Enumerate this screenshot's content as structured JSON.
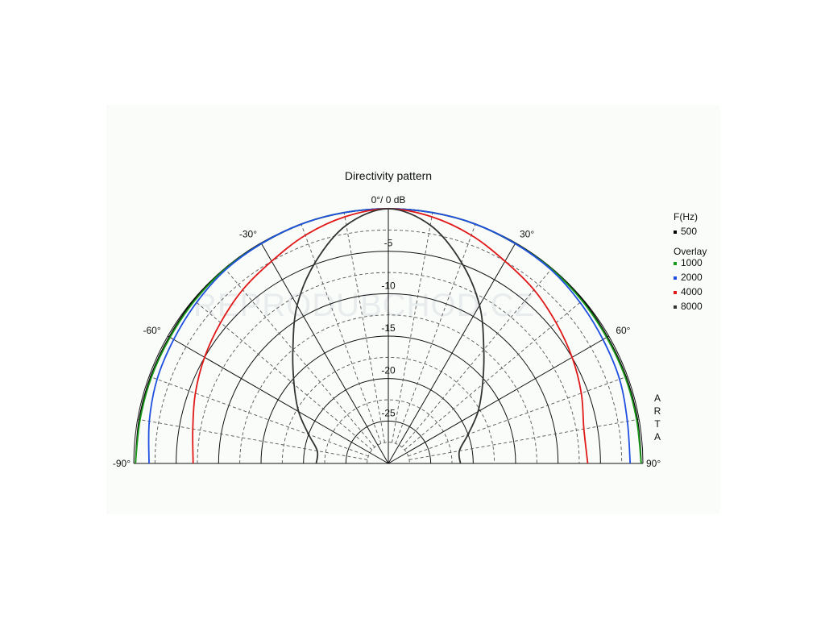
{
  "chart_data": {
    "type": "polar",
    "title": "Directivity pattern",
    "reference_label": "0°/ 0 dB",
    "radial_unit": "dB",
    "radial_range": [
      -30,
      0
    ],
    "radial_ticks": [
      -5,
      -10,
      -15,
      -20,
      -25
    ],
    "angle_range": [
      -90,
      90
    ],
    "angle_labels": [
      {
        "angle": -90,
        "text": "-90°"
      },
      {
        "angle": -60,
        "text": "-60°"
      },
      {
        "angle": -30,
        "text": "-30°"
      },
      {
        "angle": 30,
        "text": "30°"
      },
      {
        "angle": 60,
        "text": "60°"
      },
      {
        "angle": 90,
        "text": "90°"
      }
    ],
    "grid": true,
    "legend": {
      "placement": "right",
      "header": "F(Hz)",
      "primary": {
        "label": "500",
        "color": "#000000"
      },
      "overlay_header": "Overlay",
      "overlay": [
        {
          "label": "1000",
          "color": "#1a9a1a"
        },
        {
          "label": "2000",
          "color": "#1f4fe0"
        },
        {
          "label": "4000",
          "color": "#e01818"
        },
        {
          "label": "8000",
          "color": "#333333"
        }
      ]
    },
    "side_label": [
      "A",
      "R",
      "T",
      "A"
    ],
    "watermark": "REPRODUBCHOD.CZ",
    "angles": [
      -90,
      -80,
      -70,
      -60,
      -50,
      -40,
      -30,
      -20,
      -10,
      0,
      10,
      20,
      30,
      40,
      50,
      60,
      70,
      80,
      90
    ],
    "series": [
      {
        "name": "500",
        "color": "#000000",
        "values": [
          -0.2,
          -0.2,
          -0.2,
          -0.2,
          -0.1,
          -0.1,
          -0.1,
          0,
          0,
          0,
          0,
          0,
          -0.1,
          -0.1,
          -0.1,
          -0.2,
          -0.2,
          -0.2,
          -0.2
        ]
      },
      {
        "name": "1000",
        "color": "#1a9a1a",
        "values": [
          -0.2,
          -0.3,
          -0.3,
          -0.3,
          -0.2,
          -0.1,
          -0.1,
          0,
          0,
          0,
          0,
          0,
          -0.1,
          -0.1,
          -0.2,
          -0.3,
          -0.3,
          -0.3,
          -0.2
        ]
      },
      {
        "name": "2000",
        "color": "#1f4fe0",
        "values": [
          -1.8,
          -1.4,
          -1.0,
          -0.8,
          -0.5,
          -0.2,
          -0.1,
          0,
          0,
          0,
          0,
          0,
          -0.1,
          -0.2,
          -0.5,
          -0.8,
          -1.0,
          -1.4,
          -1.5
        ]
      },
      {
        "name": "4000",
        "color": "#e01818",
        "values": [
          -7.0,
          -6.6,
          -5.8,
          -5.0,
          -4.2,
          -3.3,
          -2.5,
          -1.4,
          -0.5,
          0,
          -0.5,
          -1.4,
          -2.5,
          -3.3,
          -4.2,
          -5.0,
          -5.8,
          -6.6,
          -6.5
        ]
      },
      {
        "name": "8000",
        "color": "#333333",
        "values": [
          -21.5,
          -21.5,
          -20.0,
          -17.8,
          -15.5,
          -12.5,
          -8.5,
          -4.8,
          -1.5,
          0,
          -1.5,
          -4.8,
          -8.5,
          -12.5,
          -15.5,
          -17.8,
          -20.0,
          -21.5,
          -21.5
        ]
      }
    ]
  }
}
